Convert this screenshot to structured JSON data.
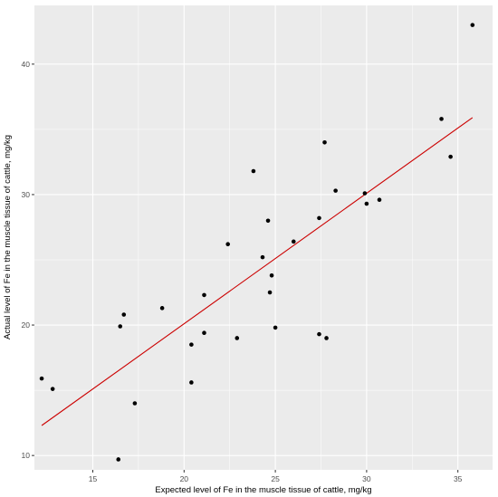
{
  "chart_data": {
    "type": "scatter",
    "xlabel": "Expected level of Fe in the muscle tissue of cattle, mg/kg",
    "ylabel": "Actual level of Fe in the muscle tissue of cattle, mg/kg",
    "xlim": [
      11.8,
      36.9
    ],
    "ylim": [
      8.9,
      44.5
    ],
    "x_ticks": [
      15,
      20,
      25,
      30,
      35
    ],
    "y_ticks": [
      10,
      20,
      30,
      40
    ],
    "grid": true,
    "background": "#EBEBEB",
    "grid_color": "#FFFFFF",
    "point_color": "#000000",
    "line_color": "#CC0000",
    "points": [
      {
        "x": 12.2,
        "y": 15.9
      },
      {
        "x": 12.8,
        "y": 15.1
      },
      {
        "x": 16.4,
        "y": 9.7
      },
      {
        "x": 16.5,
        "y": 19.9
      },
      {
        "x": 16.7,
        "y": 20.8
      },
      {
        "x": 17.3,
        "y": 14.0
      },
      {
        "x": 18.8,
        "y": 21.3
      },
      {
        "x": 20.4,
        "y": 18.5
      },
      {
        "x": 20.4,
        "y": 15.6
      },
      {
        "x": 21.1,
        "y": 22.3
      },
      {
        "x": 21.1,
        "y": 19.4
      },
      {
        "x": 22.4,
        "y": 26.2
      },
      {
        "x": 22.9,
        "y": 19.0
      },
      {
        "x": 23.8,
        "y": 31.8
      },
      {
        "x": 24.3,
        "y": 25.2
      },
      {
        "x": 24.6,
        "y": 28.0
      },
      {
        "x": 24.7,
        "y": 22.5
      },
      {
        "x": 24.8,
        "y": 23.8
      },
      {
        "x": 25.0,
        "y": 19.8
      },
      {
        "x": 26.0,
        "y": 26.4
      },
      {
        "x": 27.4,
        "y": 28.2
      },
      {
        "x": 27.4,
        "y": 19.3
      },
      {
        "x": 27.7,
        "y": 34.0
      },
      {
        "x": 27.8,
        "y": 19.0
      },
      {
        "x": 28.3,
        "y": 30.3
      },
      {
        "x": 29.9,
        "y": 30.1
      },
      {
        "x": 30.0,
        "y": 29.3
      },
      {
        "x": 30.7,
        "y": 29.6
      },
      {
        "x": 34.1,
        "y": 35.8
      },
      {
        "x": 34.6,
        "y": 32.9
      },
      {
        "x": 35.8,
        "y": 43.0
      }
    ],
    "fit_line": {
      "x": [
        12.2,
        35.8
      ],
      "y": [
        12.3,
        35.9
      ]
    }
  }
}
